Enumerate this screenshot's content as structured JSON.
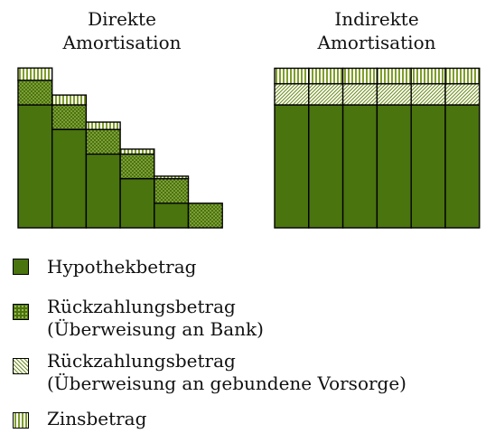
{
  "titles": {
    "direct_line1": "Direkte",
    "direct_line2": "Amortisation",
    "indirect_line1": "Indirekte",
    "indirect_line2": "Amortisation"
  },
  "colors": {
    "hypothek": "#4a740e",
    "rueck_bank": "#4a740e",
    "rueck_vorsorge": "#c8d97f",
    "zins": "#d0df8a",
    "outline": "#000000"
  },
  "legend": [
    {
      "key": "hypothek",
      "pattern": "solid",
      "lines": [
        "Hypothekbetrag"
      ]
    },
    {
      "key": "rueck_bank",
      "pattern": "dots",
      "lines": [
        "Rückzahlungsbetrag",
        "(Überweisung an Bank)"
      ]
    },
    {
      "key": "rueck_vorsorge",
      "pattern": "diagonal",
      "lines": [
        "Rückzahlungsbetrag",
        "(Überweisung an gebundene Vorsorge)"
      ]
    },
    {
      "key": "zins",
      "pattern": "vertical",
      "lines": [
        "Zinsbetrag"
      ]
    }
  ],
  "diagram": {
    "direct_amortisation": {
      "periods": 6,
      "hypothek": [
        1.0,
        0.8,
        0.6,
        0.4,
        0.2,
        0.0
      ],
      "rueckzahlung": [
        0.2,
        0.2,
        0.2,
        0.2,
        0.2,
        0.2
      ],
      "zins": [
        0.1,
        0.08,
        0.06,
        0.04,
        0.02,
        0.0
      ]
    },
    "indirect_amortisation": {
      "periods": 6,
      "hypothek": [
        1,
        1,
        1,
        1,
        1,
        1
      ],
      "rueckzahlung": [
        0.2,
        0.2,
        0.2,
        0.2,
        0.2,
        0.2
      ],
      "zins": [
        0.1,
        0.1,
        0.1,
        0.1,
        0.1,
        0.1
      ]
    }
  }
}
